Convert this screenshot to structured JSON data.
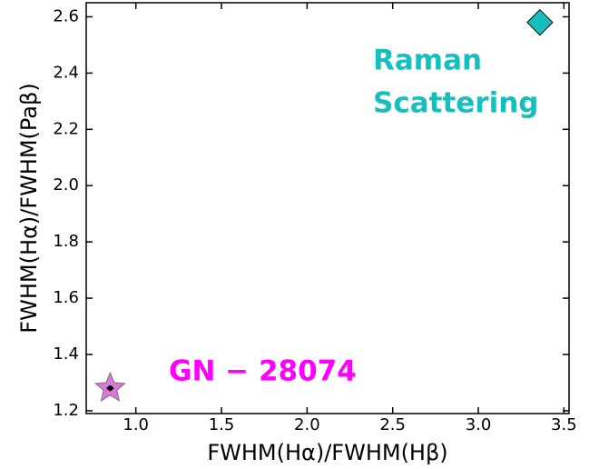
{
  "chart_data": {
    "type": "scatter",
    "xlabel": "FWHM(Hα)/FWHM(Hβ)",
    "ylabel": "FWHM(Hα)/FWHM(Paβ)",
    "x": [
      3.36,
      0.85
    ],
    "y": [
      2.58,
      1.28
    ],
    "xerr": [
      null,
      0.02
    ],
    "yerr": [
      null,
      0.01
    ],
    "markers": [
      "diamond",
      "star"
    ],
    "colors": [
      "#17bebe",
      "#d77ad7"
    ],
    "xlim": [
      0.71,
      3.53
    ],
    "ylim": [
      1.19,
      2.65
    ],
    "xticks": [
      {
        "value": 1,
        "label": "1.0"
      },
      1.5,
      {
        "value": 2,
        "label": "2.0"
      },
      2.5,
      {
        "value": 3,
        "label": "3.0"
      },
      3.5
    ],
    "yticks": [
      1.2,
      1.4,
      1.6,
      1.8,
      {
        "value": 2,
        "label": "2.0"
      },
      2.2,
      2.4,
      2.6
    ],
    "annotations": [
      {
        "lines": [
          "Raman",
          "Scattering"
        ],
        "color": "#17bebe"
      },
      {
        "lines": [
          "GN − 28074"
        ],
        "color": "#ff00ff"
      }
    ],
    "grid": false
  }
}
